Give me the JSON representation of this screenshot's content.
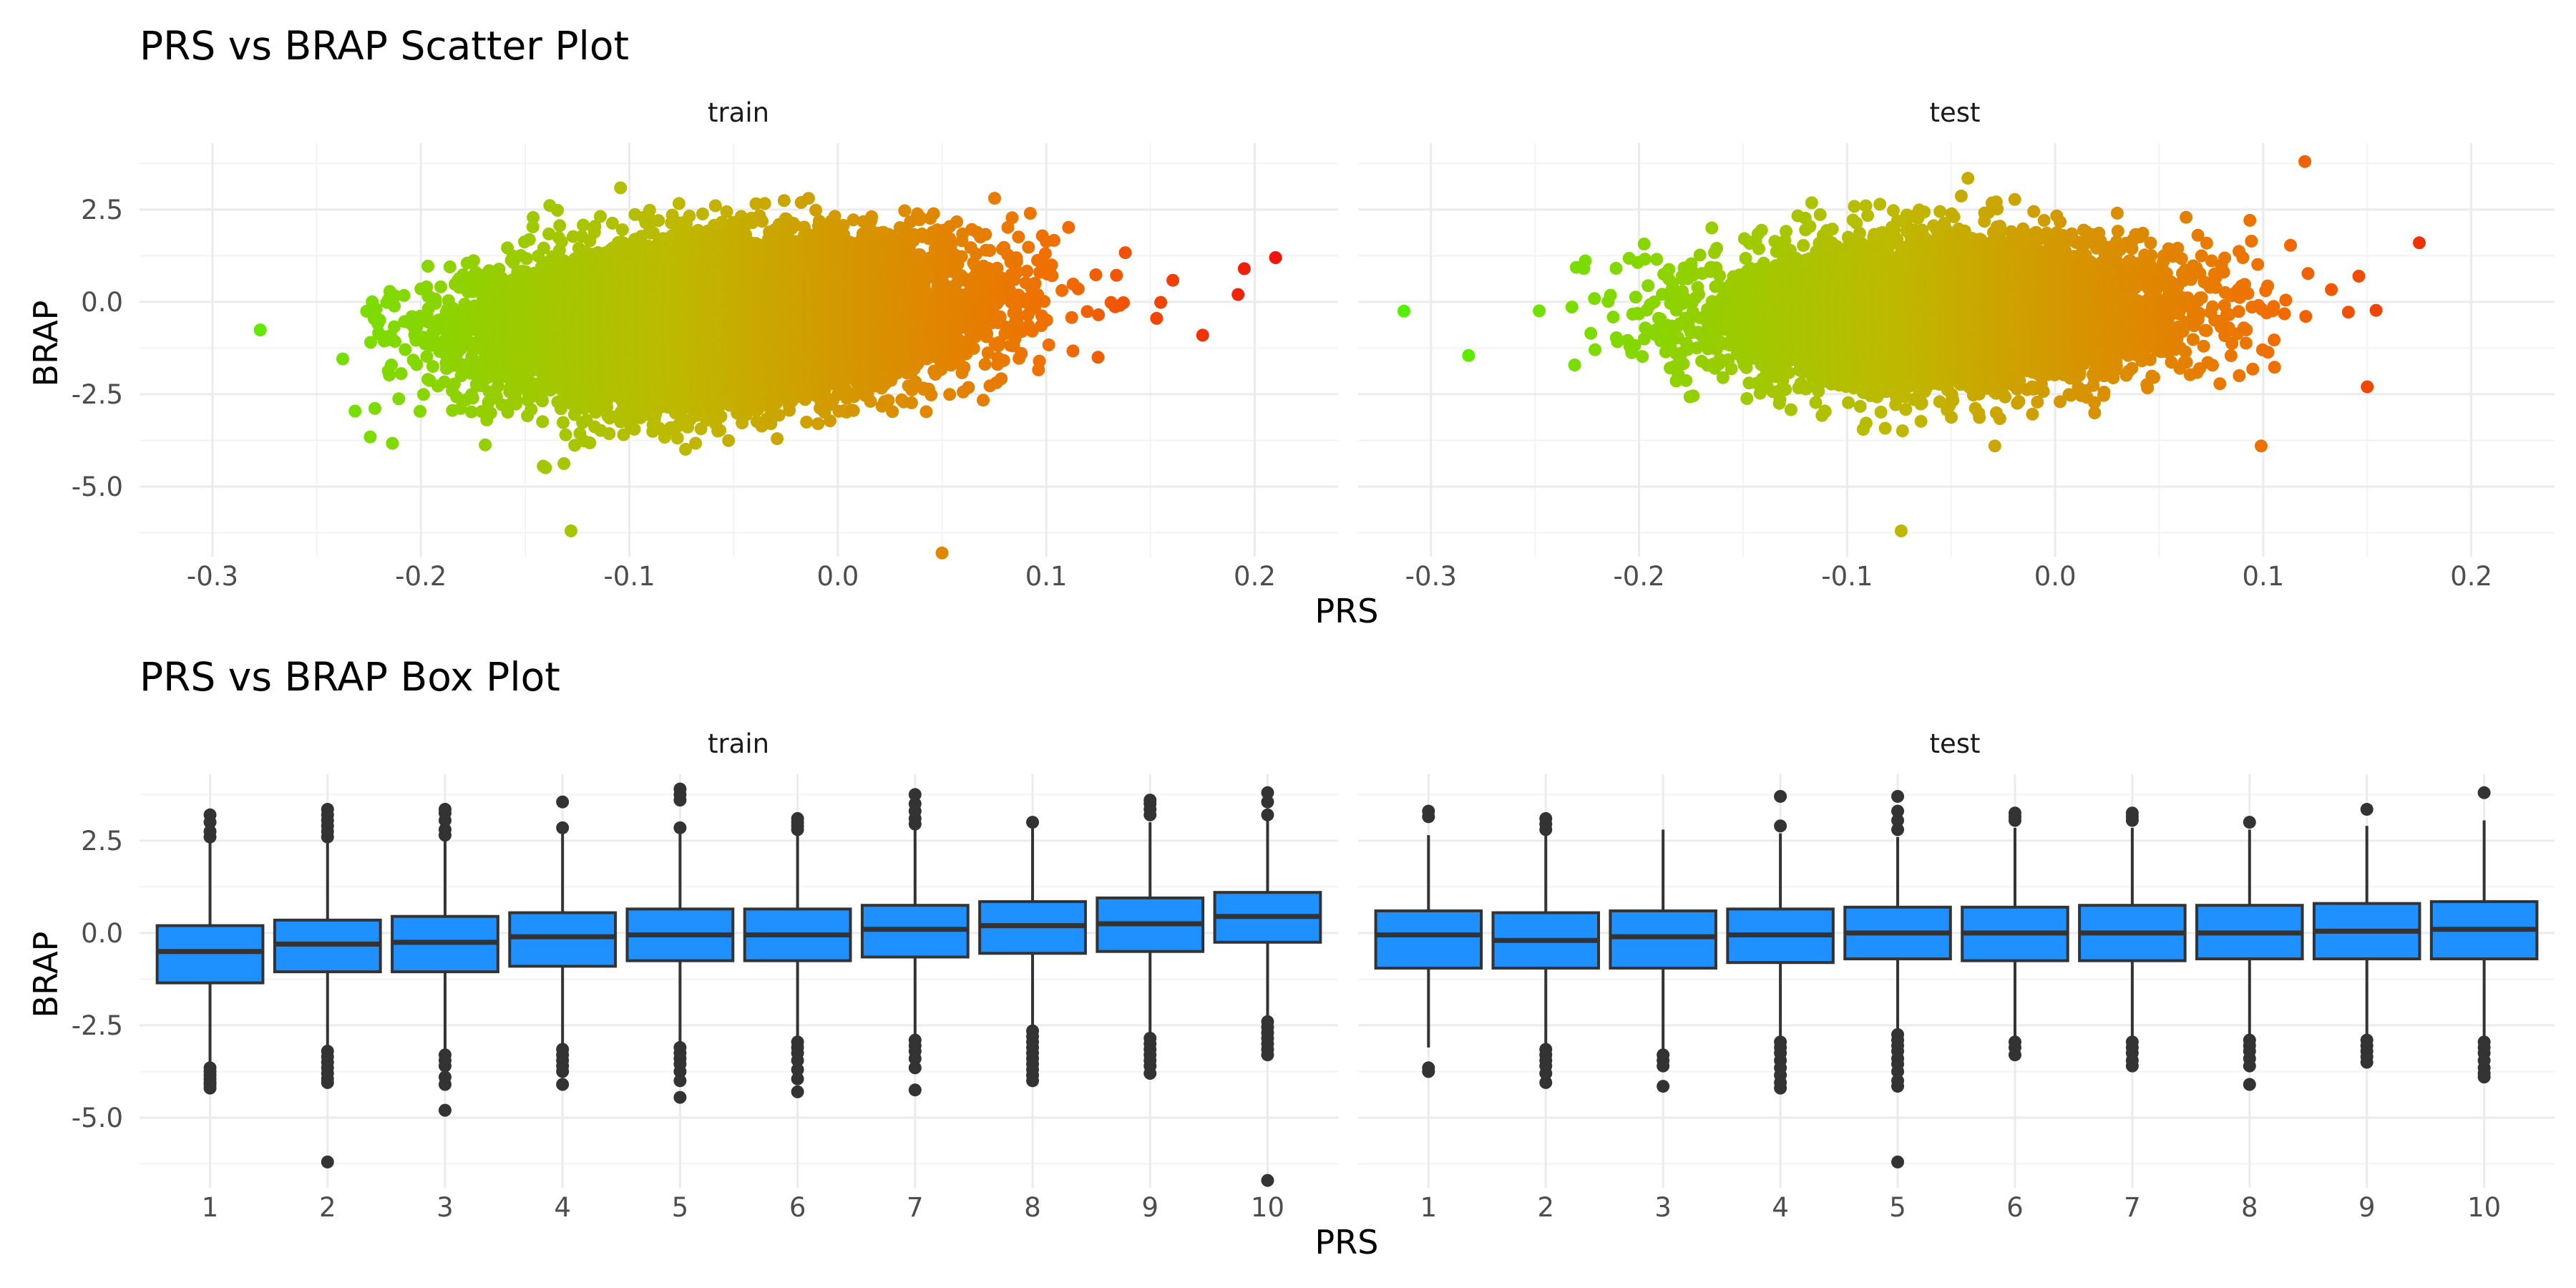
{
  "chart_data": [
    {
      "type": "scatter",
      "title": "PRS vs BRAP Scatter Plot",
      "xlabel": "PRS",
      "ylabel": "BRAP",
      "facets": [
        "train",
        "test"
      ],
      "xlim": [
        -0.335,
        0.24
      ],
      "ylim": [
        -6.9,
        4.3
      ],
      "x_ticks": [
        "-0.3",
        "-0.2",
        "-0.1",
        "0.0",
        "0.1",
        "0.2"
      ],
      "y_ticks": [
        "2.5",
        "0.0",
        "-2.5",
        "-5.0"
      ],
      "color_gradient": [
        "#55ff00",
        "#ff0000"
      ],
      "grid": true,
      "legend": "none",
      "point_summary": [
        {
          "facet": "train",
          "x_range": [
            -0.3,
            0.21
          ],
          "y_center_at_x": [
            [
              -0.3,
              -1.3
            ],
            [
              -0.2,
              -1.0
            ],
            [
              -0.1,
              -0.65
            ],
            [
              0.0,
              -0.3
            ],
            [
              0.1,
              0.1
            ]
          ],
          "y_spread_sd": 1.0,
          "notable_points": [
            [
              -0.128,
              -6.2
            ],
            [
              0.05,
              -6.8
            ],
            [
              0.21,
              1.2
            ],
            [
              0.195,
              0.9
            ],
            [
              0.192,
              0.2
            ],
            [
              0.175,
              -0.9
            ]
          ]
        },
        {
          "facet": "test",
          "x_range": [
            -0.313,
            0.175
          ],
          "y_center_at_x": [
            [
              -0.3,
              -0.4
            ],
            [
              -0.2,
              -0.4
            ],
            [
              -0.1,
              -0.3
            ],
            [
              0.0,
              -0.25
            ],
            [
              0.1,
              -0.1
            ]
          ],
          "y_spread_sd": 0.95,
          "notable_points": [
            [
              -0.313,
              -0.25
            ],
            [
              -0.074,
              -6.2
            ],
            [
              0.175,
              1.6
            ],
            [
              0.12,
              3.8
            ],
            [
              0.099,
              -3.9
            ],
            [
              0.15,
              -2.3
            ]
          ]
        }
      ]
    },
    {
      "type": "box",
      "title": "PRS vs BRAP Box Plot",
      "xlabel": "PRS",
      "ylabel": "BRAP",
      "facets": [
        "train",
        "test"
      ],
      "categories": [
        "1",
        "2",
        "3",
        "4",
        "5",
        "6",
        "7",
        "8",
        "9",
        "10"
      ],
      "ylim": [
        -6.9,
        4.3
      ],
      "y_ticks": [
        "2.5",
        "0.0",
        "-2.5",
        "-5.0"
      ],
      "fill": "#1e90ff",
      "grid": true,
      "boxes": {
        "train": [
          {
            "q1": -1.35,
            "median": -0.5,
            "q3": 0.2,
            "lower": -3.55,
            "upper": 2.55,
            "outliers_low": [
              -3.65,
              -3.75,
              -3.85,
              -3.95,
              -4.05,
              -4.1,
              -4.2
            ],
            "outliers_high": [
              2.6,
              2.75,
              3.0,
              3.2
            ]
          },
          {
            "q1": -1.05,
            "median": -0.3,
            "q3": 0.35,
            "lower": -3.1,
            "upper": 2.55,
            "outliers_low": [
              -3.2,
              -3.35,
              -3.5,
              -3.65,
              -3.8,
              -3.95,
              -4.05,
              -6.2
            ],
            "outliers_high": [
              2.6,
              2.75,
              2.9,
              3.05,
              3.2,
              3.35
            ]
          },
          {
            "q1": -1.05,
            "median": -0.25,
            "q3": 0.45,
            "lower": -3.2,
            "upper": 2.5,
            "outliers_low": [
              -3.3,
              -3.45,
              -3.6,
              -3.9,
              -4.1,
              -4.8
            ],
            "outliers_high": [
              2.65,
              2.8,
              3.05,
              3.25,
              3.35
            ]
          },
          {
            "q1": -0.9,
            "median": -0.1,
            "q3": 0.55,
            "lower": -3.05,
            "upper": 2.75,
            "outliers_low": [
              -3.15,
              -3.3,
              -3.45,
              -3.6,
              -3.75,
              -4.1
            ],
            "outliers_high": [
              2.85,
              3.55
            ]
          },
          {
            "q1": -0.75,
            "median": -0.05,
            "q3": 0.65,
            "lower": -3.0,
            "upper": 2.75,
            "outliers_low": [
              -3.1,
              -3.25,
              -3.4,
              -3.55,
              -3.75,
              -4.0,
              -4.45
            ],
            "outliers_high": [
              2.85,
              3.6,
              3.75,
              3.9
            ]
          },
          {
            "q1": -0.75,
            "median": -0.05,
            "q3": 0.65,
            "lower": -2.85,
            "upper": 2.7,
            "outliers_low": [
              -2.95,
              -3.1,
              -3.25,
              -3.45,
              -3.7,
              -3.95,
              -4.3
            ],
            "outliers_high": [
              2.8,
              2.9,
              3.0,
              3.1
            ]
          },
          {
            "q1": -0.65,
            "median": 0.1,
            "q3": 0.75,
            "lower": -2.8,
            "upper": 2.85,
            "outliers_low": [
              -2.9,
              -3.05,
              -3.2,
              -3.4,
              -3.65,
              -4.25
            ],
            "outliers_high": [
              2.95,
              3.1,
              3.3,
              3.5,
              3.75
            ]
          },
          {
            "q1": -0.55,
            "median": 0.2,
            "q3": 0.85,
            "lower": -2.55,
            "upper": 2.95,
            "outliers_low": [
              -2.65,
              -2.8,
              -2.95,
              -3.1,
              -3.25,
              -3.4,
              -3.55,
              -3.7,
              -3.85,
              -4.0
            ],
            "outliers_high": [
              3.0
            ]
          },
          {
            "q1": -0.5,
            "median": 0.25,
            "q3": 0.95,
            "lower": -2.75,
            "upper": 3.0,
            "outliers_low": [
              -2.85,
              -3.0,
              -3.15,
              -3.3,
              -3.45,
              -3.6,
              -3.8
            ],
            "outliers_high": [
              3.2,
              3.35,
              3.5,
              3.6
            ]
          },
          {
            "q1": -0.25,
            "median": 0.45,
            "q3": 1.1,
            "lower": -2.3,
            "upper": 3.1,
            "outliers_low": [
              -2.4,
              -2.55,
              -2.7,
              -2.85,
              -3.0,
              -3.15,
              -3.3,
              -6.7
            ],
            "outliers_high": [
              3.2,
              3.55,
              3.8
            ]
          }
        ],
        "test": [
          {
            "q1": -0.95,
            "median": -0.05,
            "q3": 0.6,
            "lower": -3.1,
            "upper": 2.65,
            "outliers_low": [
              -3.65,
              -3.75
            ],
            "outliers_high": [
              3.15,
              3.3
            ]
          },
          {
            "q1": -0.95,
            "median": -0.2,
            "q3": 0.55,
            "lower": -3.05,
            "upper": 2.65,
            "outliers_low": [
              -3.15,
              -3.3,
              -3.45,
              -3.6,
              -3.8,
              -4.05
            ],
            "outliers_high": [
              2.8,
              2.95,
              3.1
            ]
          },
          {
            "q1": -0.95,
            "median": -0.1,
            "q3": 0.6,
            "lower": -3.2,
            "upper": 2.8,
            "outliers_low": [
              -3.3,
              -3.45,
              -3.6,
              -4.15
            ],
            "outliers_high": []
          },
          {
            "q1": -0.8,
            "median": -0.05,
            "q3": 0.65,
            "lower": -2.85,
            "upper": 2.7,
            "outliers_low": [
              -2.95,
              -3.1,
              -3.25,
              -3.45,
              -3.65,
              -3.85,
              -4.05,
              -4.2
            ],
            "outliers_high": [
              2.9,
              3.7
            ]
          },
          {
            "q1": -0.7,
            "median": 0.0,
            "q3": 0.7,
            "lower": -2.65,
            "upper": 2.6,
            "outliers_low": [
              -2.75,
              -2.9,
              -3.05,
              -3.2,
              -3.4,
              -3.55,
              -3.75,
              -4.0,
              -4.15,
              -6.2
            ],
            "outliers_high": [
              2.8,
              3.05,
              3.3,
              3.7
            ]
          },
          {
            "q1": -0.75,
            "median": 0.0,
            "q3": 0.7,
            "lower": -2.85,
            "upper": 2.85,
            "outliers_low": [
              -2.95,
              -3.1,
              -3.3
            ],
            "outliers_high": [
              3.05,
              3.15,
              3.25
            ]
          },
          {
            "q1": -0.75,
            "median": 0.0,
            "q3": 0.75,
            "lower": -2.85,
            "upper": 2.85,
            "outliers_low": [
              -2.95,
              -3.1,
              -3.25,
              -3.45,
              -3.6
            ],
            "outliers_high": [
              3.05,
              3.15,
              3.25
            ]
          },
          {
            "q1": -0.7,
            "median": 0.0,
            "q3": 0.75,
            "lower": -2.8,
            "upper": 2.8,
            "outliers_low": [
              -2.9,
              -3.05,
              -3.2,
              -3.4,
              -3.6,
              -4.1
            ],
            "outliers_high": [
              3.0
            ]
          },
          {
            "q1": -0.7,
            "median": 0.05,
            "q3": 0.8,
            "lower": -2.8,
            "upper": 2.9,
            "outliers_low": [
              -2.9,
              -3.05,
              -3.2,
              -3.35,
              -3.5
            ],
            "outliers_high": [
              3.35
            ]
          },
          {
            "q1": -0.7,
            "median": 0.1,
            "q3": 0.85,
            "lower": -2.85,
            "upper": 3.05,
            "outliers_low": [
              -2.95,
              -3.1,
              -3.25,
              -3.45,
              -3.65,
              -3.8,
              -3.9
            ],
            "outliers_high": [
              3.8
            ]
          }
        ]
      }
    }
  ]
}
